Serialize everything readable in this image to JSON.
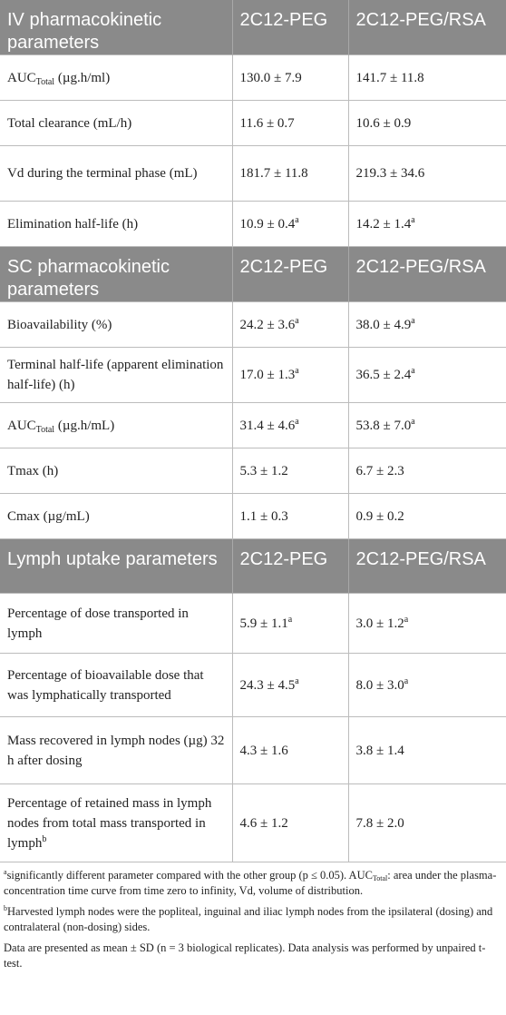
{
  "headers": {
    "iv": [
      "IV pharmacokinetic parameters",
      "2C12-PEG",
      "2C12-PEG/RSA"
    ],
    "sc": [
      "SC pharmacokinetic parameters",
      "2C12-PEG",
      "2C12-PEG/RSA"
    ],
    "lymph": [
      "Lymph uptake parameters",
      "2C12-PEG",
      "2C12-PEG/RSA"
    ]
  },
  "iv_rows": [
    {
      "param_main": "AUC",
      "param_sub": "Total",
      "param_tail": " (µg.h/ml)",
      "v1": "130.0 ± 7.9",
      "v1_sup": "",
      "v2": "141.7 ± 11.8",
      "v2_sup": ""
    },
    {
      "param_main": "Total clearance (mL/h)",
      "param_sub": "",
      "param_tail": "",
      "v1": "11.6 ± 0.7",
      "v1_sup": "",
      "v2": "10.6 ± 0.9",
      "v2_sup": ""
    },
    {
      "param_main": "Vd during the terminal phase (mL)",
      "param_sub": "",
      "param_tail": "",
      "v1": "181.7 ± 11.8",
      "v1_sup": "",
      "v2": "219.3 ± 34.6",
      "v2_sup": ""
    },
    {
      "param_main": "Elimination half-life (h)",
      "param_sub": "",
      "param_tail": "",
      "v1": "10.9 ± 0.4",
      "v1_sup": "a",
      "v2": "14.2 ± 1.4",
      "v2_sup": "a"
    }
  ],
  "sc_rows": [
    {
      "param_main": "Bioavailability (%)",
      "param_sub": "",
      "param_tail": "",
      "v1": "24.2 ± 3.6",
      "v1_sup": "a",
      "v2": "38.0 ± 4.9",
      "v2_sup": "a"
    },
    {
      "param_main": "Terminal half-life (apparent elimination half-life) (h)",
      "param_sub": "",
      "param_tail": "",
      "v1": "17.0 ± 1.3",
      "v1_sup": "a",
      "v2": "36.5 ± 2.4",
      "v2_sup": "a"
    },
    {
      "param_main": "AUC",
      "param_sub": "Total",
      "param_tail": " (µg.h/mL)",
      "v1": "31.4 ± 4.6",
      "v1_sup": "a",
      "v2": "53.8 ± 7.0",
      "v2_sup": "a"
    },
    {
      "param_main": "Tmax (h)",
      "param_sub": "",
      "param_tail": "",
      "v1": "5.3 ± 1.2",
      "v1_sup": "",
      "v2": "6.7 ± 2.3",
      "v2_sup": ""
    },
    {
      "param_main": "Cmax (µg/mL)",
      "param_sub": "",
      "param_tail": "",
      "v1": "1.1 ± 0.3",
      "v1_sup": "",
      "v2": "0.9 ± 0.2",
      "v2_sup": ""
    }
  ],
  "lymph_rows": [
    {
      "param_main": "Percentage of dose transported in lymph",
      "param_sup": "",
      "v1": "5.9 ± 1.1",
      "v1_sup": "a",
      "v2": "3.0 ± 1.2",
      "v2_sup": "a"
    },
    {
      "param_main": "Percentage of bioavailable dose that was lymphatically transported",
      "param_sup": "",
      "v1": "24.3 ± 4.5",
      "v1_sup": "a",
      "v2": "8.0 ± 3.0",
      "v2_sup": "a"
    },
    {
      "param_main": "Mass recovered in lymph nodes (µg) 32 h after dosing",
      "param_sup": "",
      "v1": "4.3 ± 1.6",
      "v1_sup": "",
      "v2": "3.8 ± 1.4",
      "v2_sup": ""
    },
    {
      "param_main": "Percentage of retained mass in lymph nodes from total mass transported in lymph",
      "param_sup": "b",
      "v1": "4.6 ± 1.2",
      "v1_sup": "",
      "v2": "7.8 ± 2.0",
      "v2_sup": ""
    }
  ],
  "footnotes": {
    "a_mark": "a",
    "a_text": "significantly different parameter compared with the other group (p ≤ 0.05). AUC",
    "a_sub": "Total",
    "a_text2": ": area under the plasma-concentration time curve from time zero to infinity, Vd, volume of distribution.",
    "b_mark": "b",
    "b_text": "Harvested lymph nodes were the popliteal, inguinal and iliac lymph nodes from the ipsilateral (dosing) and contralateral (non-dosing) sides.",
    "data_note": "Data are presented as mean ± SD (n = 3 biological replicates). Data analysis was performed by unpaired t-test."
  }
}
